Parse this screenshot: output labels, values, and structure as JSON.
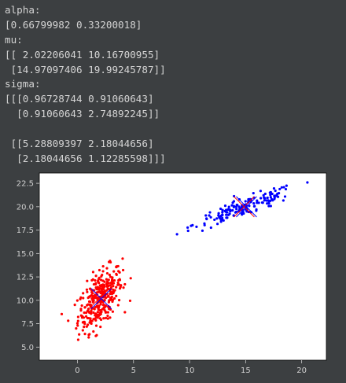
{
  "console": {
    "lines": [
      "alpha:",
      "[0.66799982 0.33200018]",
      "mu:",
      "[[ 2.02206041 10.16700955]",
      " [14.97097406 19.99245787]]",
      "sigma:",
      "[[[0.96728744 0.91060643]",
      "  [0.91060643 2.74892245]]",
      "",
      " [[5.28809397 2.18044656]",
      "  [2.18044656 1.12285598]]]"
    ]
  },
  "colors": {
    "background": "#3c3f41",
    "text": "#d4d4d4",
    "plot_face": "#ffffff",
    "cluster_a": "#ff0000",
    "cluster_b": "#0000ff"
  },
  "chart_data": {
    "type": "scatter",
    "title": "",
    "xlabel": "",
    "ylabel": "",
    "xlim": [
      -3.4,
      22.2
    ],
    "ylim": [
      3.6,
      23.6
    ],
    "xticks": [
      0,
      5,
      10,
      15,
      20
    ],
    "xtick_labels": [
      "0",
      "5",
      "10",
      "15",
      "20"
    ],
    "yticks": [
      5.0,
      7.5,
      10.0,
      12.5,
      15.0,
      17.5,
      20.0,
      22.5
    ],
    "ytick_labels": [
      "5.0",
      "7.5",
      "10.0",
      "12.5",
      "15.0",
      "17.5",
      "20.0",
      "22.5"
    ],
    "grid": false,
    "legend": "none",
    "clusters": [
      {
        "color": "#ff0000",
        "count": 334,
        "mean": [
          2.02206041,
          10.16700955
        ],
        "cov": [
          [
            0.96728744,
            0.91060643
          ],
          [
            0.91060643,
            2.74892245
          ]
        ],
        "x_range": [
          -1.5,
          4.8
        ],
        "y_range": [
          4.6,
          16.0
        ]
      },
      {
        "color": "#0000ff",
        "count": 166,
        "mean": [
          14.97097406,
          19.99245787
        ],
        "cov": [
          [
            5.28809397,
            2.18044656
          ],
          [
            2.18044656,
            1.12285598
          ]
        ],
        "x_range": [
          8.8,
          21.0
        ],
        "y_range": [
          17.0,
          22.8
        ]
      }
    ],
    "markers": [
      {
        "x": 2.02206041,
        "y": 10.16700955,
        "colors": [
          "#ff0000",
          "#0000ff"
        ],
        "marker": "x"
      },
      {
        "x": 14.97097406,
        "y": 19.99245787,
        "colors": [
          "#ff0000",
          "#0000ff"
        ],
        "marker": "x"
      }
    ]
  }
}
